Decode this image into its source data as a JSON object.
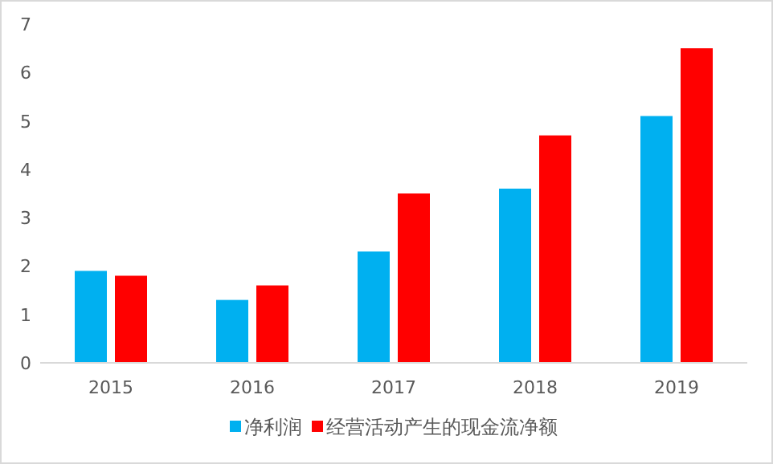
{
  "chart_data": {
    "type": "bar",
    "categories": [
      "2015",
      "2016",
      "2017",
      "2018",
      "2019"
    ],
    "series": [
      {
        "name": "净利润",
        "color": "#00b0f0",
        "values": [
          1.9,
          1.3,
          2.3,
          3.6,
          5.1
        ]
      },
      {
        "name": "经营活动产生的现金流净额",
        "color": "#ff0000",
        "values": [
          1.8,
          1.6,
          3.5,
          4.7,
          6.5
        ]
      }
    ],
    "ylim": [
      0,
      7
    ],
    "yticks": [
      0,
      1,
      2,
      3,
      4,
      5,
      6,
      7
    ],
    "grid": false,
    "legend": "bottom"
  }
}
